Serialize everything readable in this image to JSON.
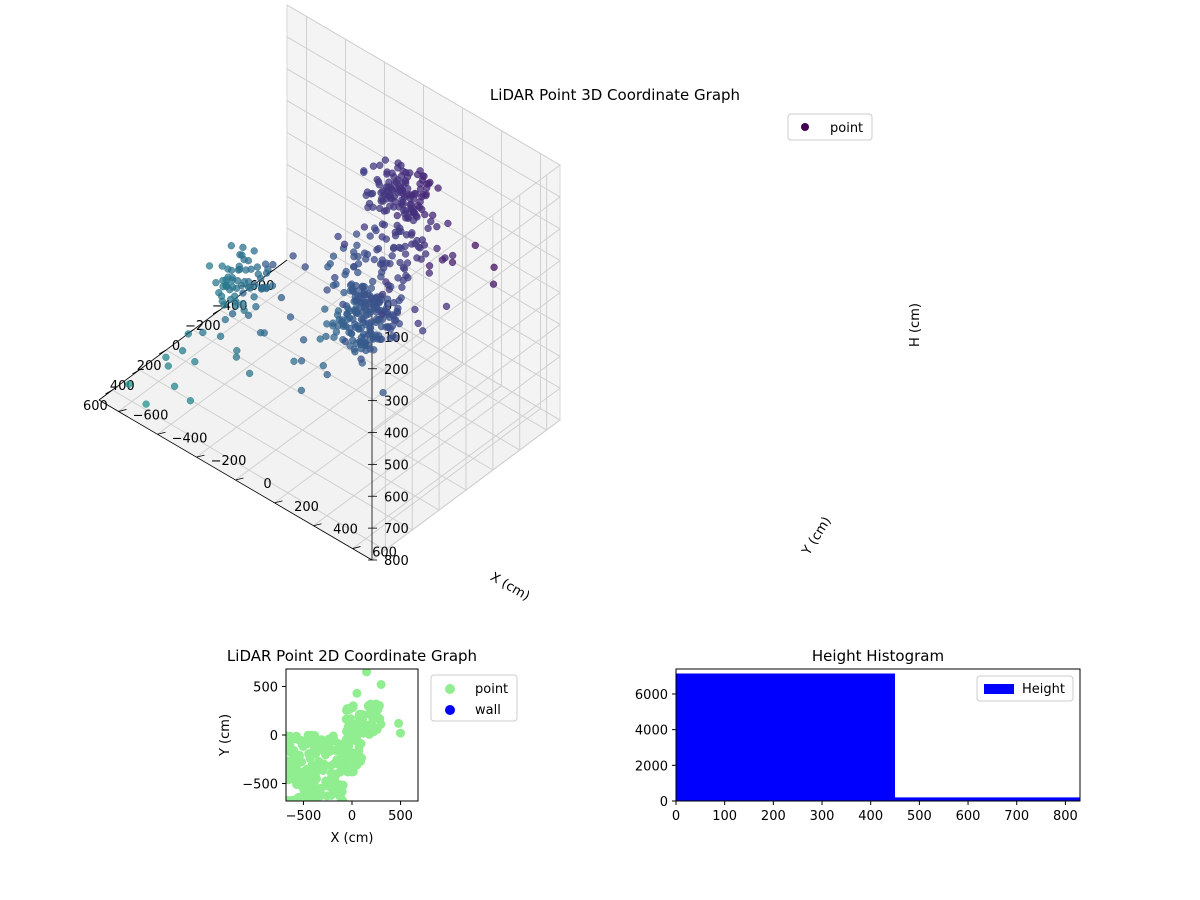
{
  "chart_data": [
    {
      "type": "scatter",
      "projection": "3d",
      "title": "LiDAR Point 3D Coordinate Graph",
      "xlabel": "X (cm)",
      "ylabel": "Y (cm)",
      "zlabel": "H (cm)",
      "xlim": [
        -700,
        700
      ],
      "ylim": [
        -700,
        700
      ],
      "zlim": [
        800,
        0
      ],
      "zaxis_inverted": true,
      "x_ticks": [
        "−600",
        "−400",
        "−200",
        "0",
        "200",
        "400",
        "600"
      ],
      "y_ticks": [
        "−600",
        "−400",
        "−200",
        "0",
        "200",
        "400",
        "600"
      ],
      "z_ticks": [
        "0",
        "100",
        "200",
        "300",
        "400",
        "500",
        "600",
        "700",
        "800"
      ],
      "grid": true,
      "legend": {
        "placement": "top-right",
        "entries": [
          "point"
        ]
      },
      "colormap": "viridis",
      "series": [
        {
          "name": "point",
          "color": "#440154",
          "clusters": [
            {
              "x": [
                300,
                620
              ],
              "y": [
                380,
                620
              ],
              "h": [
                130,
                240
              ],
              "count": 160
            },
            {
              "x": [
                -520,
                -300
              ],
              "y": [
                -60,
                200
              ],
              "h": [
                160,
                280
              ],
              "count": 120
            },
            {
              "x": [
                -300,
                300
              ],
              "y": [
                150,
                450
              ],
              "h": [
                150,
                260
              ],
              "count": 90
            },
            {
              "x": [
                150,
                420
              ],
              "y": [
                -350,
                -150
              ],
              "h": [
                330,
                460
              ],
              "count": 60
            }
          ],
          "points": [
            [
              -650,
              -100,
              430
            ],
            [
              -600,
              100,
              500
            ],
            [
              -550,
              200,
              430
            ],
            [
              -500,
              -300,
              520
            ],
            [
              -420,
              0,
              530
            ],
            [
              -380,
              250,
              400
            ],
            [
              -330,
              -200,
              560
            ],
            [
              -300,
              100,
              480
            ],
            [
              -250,
              -500,
              600
            ],
            [
              -200,
              300,
              440
            ],
            [
              -150,
              -350,
              620
            ],
            [
              -100,
              0,
              500
            ],
            [
              -80,
              400,
              410
            ],
            [
              0,
              -200,
              580
            ],
            [
              50,
              -500,
              680
            ],
            [
              100,
              150,
              500
            ],
            [
              120,
              -50,
              560
            ],
            [
              180,
              -600,
              720
            ],
            [
              200,
              300,
              470
            ],
            [
              230,
              -400,
              640
            ],
            [
              280,
              50,
              540
            ],
            [
              330,
              -250,
              620
            ],
            [
              380,
              250,
              480
            ],
            [
              420,
              -550,
              700
            ],
            [
              450,
              -100,
              580
            ],
            [
              500,
              200,
              510
            ],
            [
              550,
              -650,
              780
            ],
            [
              600,
              -300,
              690
            ],
            [
              640,
              -500,
              760
            ],
            [
              -600,
              -600,
              720
            ],
            [
              -450,
              -600,
              700
            ],
            [
              -300,
              -650,
              760
            ],
            [
              -150,
              -600,
              760
            ],
            [
              0,
              -650,
              790
            ],
            [
              150,
              -650,
              800
            ],
            [
              300,
              -620,
              790
            ],
            [
              -650,
              300,
              380
            ],
            [
              -500,
              500,
              330
            ],
            [
              -350,
              600,
              300
            ],
            [
              0,
              600,
              260
            ],
            [
              250,
              650,
              240
            ],
            [
              50,
              -300,
              650
            ],
            [
              -50,
              -450,
              680
            ],
            [
              350,
              -450,
              700
            ],
            [
              500,
              -450,
              730
            ],
            [
              -200,
              -150,
              540
            ],
            [
              -400,
              -400,
              620
            ],
            [
              -620,
              -350,
              600
            ],
            [
              600,
              600,
              210
            ],
            [
              700,
              650,
              200
            ],
            [
              690,
              750,
              260
            ],
            [
              650,
              400,
              230
            ],
            [
              700,
              300,
              320
            ],
            [
              700,
              450,
              280
            ],
            [
              -250,
              100,
              480
            ],
            [
              -100,
              200,
              460
            ],
            [
              150,
              -250,
              600
            ],
            [
              400,
              -200,
              560
            ],
            [
              -550,
              -200,
              470
            ],
            [
              -480,
              300,
              380
            ]
          ]
        }
      ]
    },
    {
      "type": "scatter",
      "title": "LiDAR Point 2D Coordinate Graph",
      "xlabel": "X (cm)",
      "ylabel": "Y (cm)",
      "xlim": [
        -680,
        680
      ],
      "ylim": [
        -680,
        680
      ],
      "x_ticks": [
        "−500",
        "0",
        "500"
      ],
      "y_ticks": [
        "−500",
        "0",
        "500"
      ],
      "legend": {
        "placement": "outside-right",
        "entries": [
          "point",
          "wall"
        ]
      },
      "series": [
        {
          "name": "point",
          "color": "#90ee90",
          "regions": [
            {
              "x": [
                -680,
                -80
              ],
              "y": [
                -680,
                0
              ]
            },
            {
              "x": [
                -80,
                100
              ],
              "y": [
                -400,
                300
              ]
            },
            {
              "x": [
                -20,
                300
              ],
              "y": [
                0,
                320
              ]
            }
          ],
          "points": [
            [
              50,
              430
            ],
            [
              300,
              520
            ],
            [
              150,
              650
            ],
            [
              480,
              120
            ],
            [
              500,
              20
            ],
            [
              -100,
              -250
            ],
            [
              0,
              -350
            ]
          ]
        },
        {
          "name": "wall",
          "color": "#0000ff",
          "points": []
        }
      ]
    },
    {
      "type": "bar",
      "subtype": "histogram",
      "title": "Height Histogram",
      "xlim": [
        0,
        830
      ],
      "ylim": [
        0,
        7400
      ],
      "x_ticks": [
        "0",
        "100",
        "200",
        "300",
        "400",
        "500",
        "600",
        "700",
        "800"
      ],
      "y_ticks": [
        "0",
        "2000",
        "4000",
        "6000"
      ],
      "legend": {
        "placement": "top-right",
        "entries": [
          "Height"
        ]
      },
      "series": [
        {
          "name": "Height",
          "color": "#0000ff",
          "bins": [
            [
              0,
              450
            ],
            [
              450,
              830
            ]
          ],
          "values": [
            7150,
            200
          ]
        }
      ]
    }
  ]
}
